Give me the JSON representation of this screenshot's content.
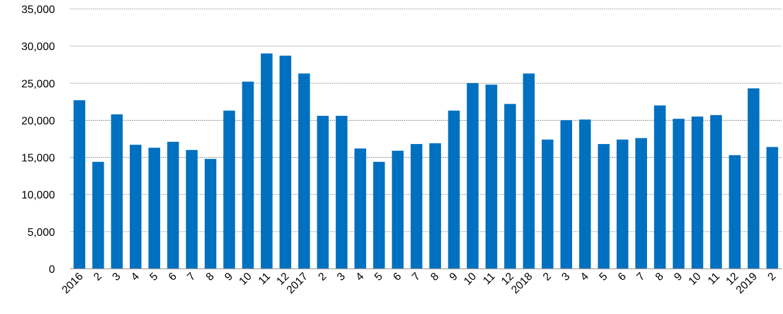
{
  "chart_data": {
    "type": "bar",
    "categories": [
      "2016",
      "2",
      "3",
      "4",
      "5",
      "6",
      "7",
      "8",
      "9",
      "10",
      "11",
      "12",
      "2017",
      "2",
      "3",
      "4",
      "5",
      "6",
      "7",
      "8",
      "9",
      "10",
      "11",
      "12",
      "2018",
      "2",
      "3",
      "4",
      "5",
      "6",
      "7",
      "8",
      "9",
      "10",
      "11",
      "12",
      "2019",
      "2"
    ],
    "values": [
      22700,
      14400,
      20800,
      16700,
      16300,
      17100,
      16000,
      14800,
      21300,
      25200,
      29000,
      28700,
      26300,
      20600,
      20600,
      16200,
      14400,
      15900,
      16800,
      16900,
      21300,
      25000,
      24800,
      22200,
      26300,
      17400,
      20000,
      20100,
      16800,
      17400,
      17600,
      22000,
      20200,
      20500,
      20700,
      15300,
      24300,
      16400
    ],
    "color": "#0070c0",
    "ylim": [
      0,
      35000
    ],
    "yticks": [
      0,
      {
        "value": 5000,
        "label": "5,000"
      },
      {
        "value": 10000,
        "label": "10,000"
      },
      {
        "value": 15000,
        "label": "15,000"
      },
      {
        "value": 20000,
        "label": "20,000"
      },
      {
        "value": 25000,
        "label": "25,000"
      },
      {
        "value": 30000,
        "label": "30,000"
      },
      {
        "value": 35000,
        "label": "35,000"
      }
    ],
    "grid": true
  }
}
